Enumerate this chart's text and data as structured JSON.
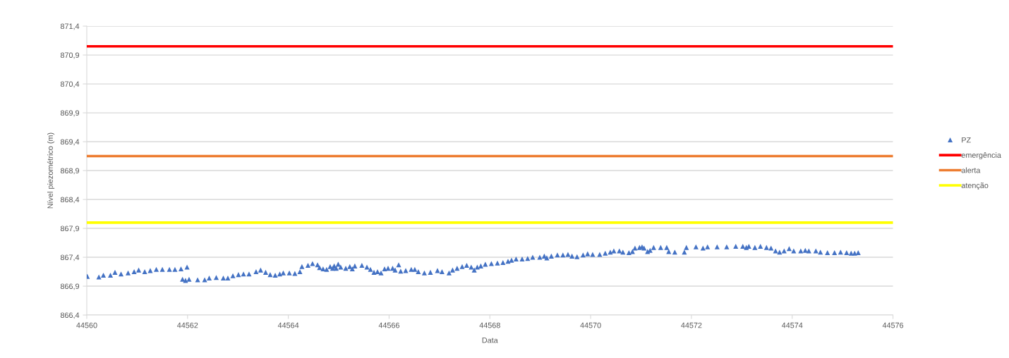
{
  "chart_data": {
    "type": "scatter",
    "xlabel": "Data",
    "ylabel": "Nível piezométrico (m)",
    "xlim": [
      44560,
      44576
    ],
    "xticks": [
      44560,
      44562,
      44564,
      44566,
      44568,
      44570,
      44572,
      44574,
      44576
    ],
    "ylim": [
      866.4,
      871.4
    ],
    "yticks": [
      {
        "value": 866.4,
        "label": "866,4"
      },
      {
        "value": 866.9,
        "label": "866,9"
      },
      {
        "value": 867.4,
        "label": "867,4"
      },
      {
        "value": 867.9,
        "label": "867,9"
      },
      {
        "value": 868.4,
        "label": "868,4"
      },
      {
        "value": 868.9,
        "label": "868,9"
      },
      {
        "value": 869.4,
        "label": "869,4"
      },
      {
        "value": 869.9,
        "label": "869,9"
      },
      {
        "value": 870.4,
        "label": "870,4"
      },
      {
        "value": 870.9,
        "label": "870,9"
      },
      {
        "value": 871.4,
        "label": "871,4"
      }
    ],
    "grid": "y",
    "legend": "right",
    "marker": "triangle",
    "series": [
      {
        "name": "PZ",
        "color": "#4472c4",
        "x": [
          44560.01,
          44560.24,
          44560.33,
          44560.47,
          44560.56,
          44560.68,
          44560.82,
          44560.94,
          44561.03,
          44561.15,
          44561.26,
          44561.38,
          44561.5,
          44561.64,
          44561.75,
          44561.87,
          44561.9,
          44561.96,
          44561.99,
          44562.03,
          44562.2,
          44562.34,
          44562.43,
          44562.57,
          44562.71,
          44562.8,
          44562.9,
          44563.01,
          44563.11,
          44563.22,
          44563.36,
          44563.45,
          44563.55,
          44563.64,
          44563.74,
          44563.83,
          44563.9,
          44564.02,
          44564.13,
          44564.23,
          44564.27,
          44564.39,
          44564.48,
          44564.58,
          44564.62,
          44564.69,
          44564.76,
          44564.83,
          44564.88,
          44564.91,
          44564.95,
          44564.99,
          44565.04,
          44565.14,
          44565.22,
          44565.27,
          44565.32,
          44565.46,
          44565.56,
          44565.63,
          44565.7,
          44565.77,
          44565.84,
          44565.91,
          44565.98,
          44566.07,
          44566.12,
          44566.19,
          44566.23,
          44566.33,
          44566.44,
          44566.51,
          44566.58,
          44566.7,
          44566.82,
          44566.96,
          44567.05,
          44567.19,
          44567.26,
          44567.35,
          44567.45,
          44567.54,
          44567.63,
          44567.69,
          44567.75,
          44567.82,
          44567.91,
          44568.03,
          44568.15,
          44568.26,
          44568.36,
          44568.43,
          44568.52,
          44568.64,
          44568.75,
          44568.85,
          44568.99,
          44569.08,
          44569.13,
          44569.22,
          44569.34,
          44569.45,
          44569.55,
          44569.63,
          44569.73,
          44569.85,
          44569.94,
          44570.04,
          44570.18,
          44570.29,
          44570.39,
          44570.46,
          44570.57,
          44570.64,
          44570.76,
          44570.83,
          44570.88,
          44570.97,
          44571.02,
          44571.06,
          44571.13,
          44571.18,
          44571.25,
          44571.39,
          44571.51,
          44571.55,
          44571.67,
          44571.86,
          44571.9,
          44572.09,
          44572.23,
          44572.32,
          44572.51,
          44572.7,
          44572.88,
          44573.02,
          44573.09,
          44573.14,
          44573.26,
          44573.37,
          44573.49,
          44573.58,
          44573.67,
          44573.75,
          44573.84,
          44573.94,
          44574.03,
          44574.17,
          44574.26,
          44574.33,
          44574.47,
          44574.56,
          44574.7,
          44574.84,
          44574.96,
          44575.08,
          44575.17,
          44575.24,
          44575.31
        ],
        "values": [
          867.07,
          867.06,
          867.09,
          867.09,
          867.14,
          867.11,
          867.13,
          867.15,
          867.18,
          867.15,
          867.17,
          867.19,
          867.19,
          867.19,
          867.19,
          867.2,
          867.02,
          867.0,
          867.23,
          867.02,
          867.01,
          867.01,
          867.04,
          867.05,
          867.04,
          867.04,
          867.08,
          867.1,
          867.11,
          867.11,
          867.15,
          867.18,
          867.14,
          867.1,
          867.09,
          867.11,
          867.13,
          867.13,
          867.12,
          867.15,
          867.24,
          867.26,
          867.29,
          867.27,
          867.22,
          867.2,
          867.19,
          867.24,
          867.21,
          867.25,
          867.21,
          867.28,
          867.23,
          867.21,
          867.24,
          867.2,
          867.25,
          867.26,
          867.23,
          867.19,
          867.14,
          867.15,
          867.13,
          867.2,
          867.21,
          867.21,
          867.18,
          867.27,
          867.16,
          867.17,
          867.19,
          867.19,
          867.15,
          867.13,
          867.14,
          867.17,
          867.15,
          867.13,
          867.18,
          867.21,
          867.24,
          867.26,
          867.23,
          867.18,
          867.23,
          867.25,
          867.28,
          867.29,
          867.3,
          867.31,
          867.33,
          867.35,
          867.37,
          867.37,
          867.38,
          867.4,
          867.4,
          867.42,
          867.39,
          867.42,
          867.44,
          867.44,
          867.45,
          867.42,
          867.41,
          867.44,
          867.46,
          867.45,
          867.45,
          867.47,
          867.49,
          867.51,
          867.51,
          867.49,
          867.48,
          867.5,
          867.56,
          867.57,
          867.58,
          867.56,
          867.5,
          867.52,
          867.57,
          867.57,
          867.57,
          867.5,
          867.49,
          867.49,
          867.57,
          867.58,
          867.56,
          867.58,
          867.58,
          867.58,
          867.59,
          867.59,
          867.57,
          867.59,
          867.57,
          867.59,
          867.57,
          867.56,
          867.51,
          867.49,
          867.51,
          867.55,
          867.51,
          867.51,
          867.52,
          867.51,
          867.51,
          867.49,
          867.48,
          867.48,
          867.49,
          867.48,
          867.47,
          867.47,
          867.48
        ]
      }
    ],
    "ref_lines": [
      {
        "axis": "y",
        "value": 871.05,
        "label": "emergência",
        "color": "#ff0000",
        "line_style": "solid"
      },
      {
        "axis": "y",
        "value": 869.15,
        "label": "alerta",
        "color": "#ed7d31",
        "line_style": "solid"
      },
      {
        "axis": "y",
        "value": 868.0,
        "label": "atenção",
        "color": "#ffff00",
        "line_style": "solid"
      }
    ]
  }
}
